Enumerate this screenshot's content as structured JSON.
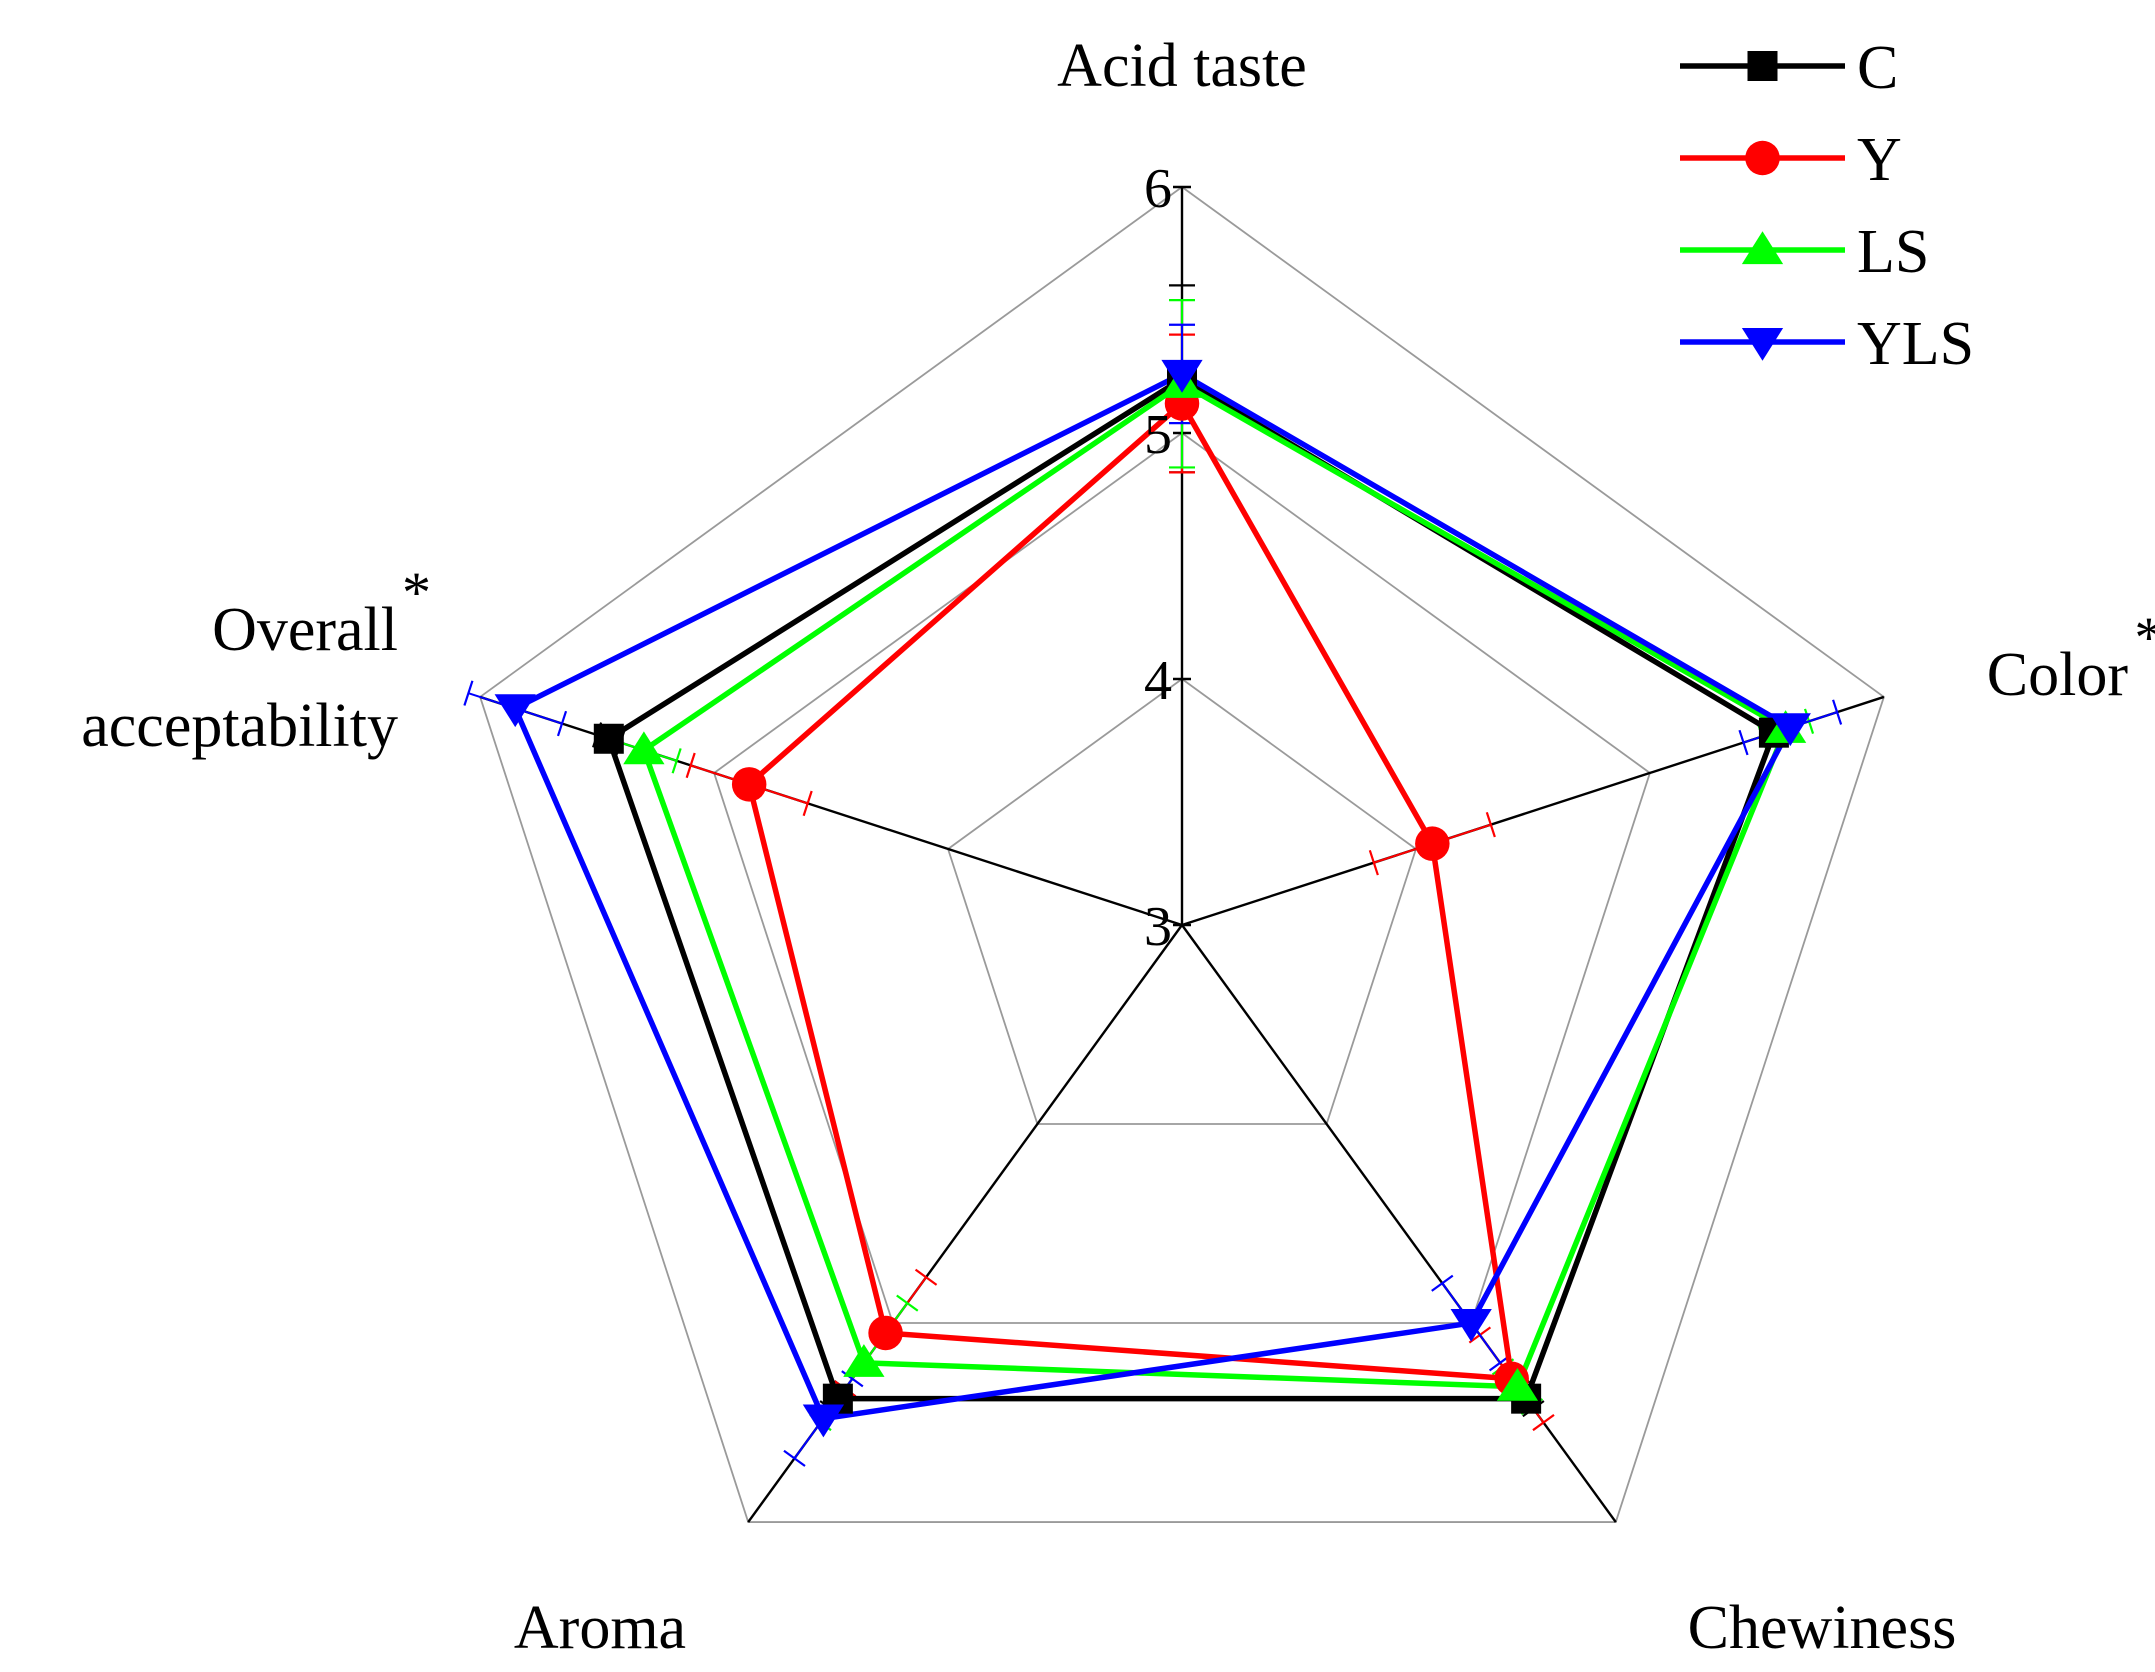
{
  "chart_data": {
    "type": "radar",
    "axes": [
      {
        "label": "Acid taste",
        "marker": ""
      },
      {
        "label": "Color",
        "marker": "*"
      },
      {
        "label": "Chewiness",
        "marker": ""
      },
      {
        "label": "Aroma",
        "marker": ""
      },
      {
        "label": "Overall acceptability",
        "label_lines": [
          "Overall",
          "acceptability"
        ],
        "marker": "*"
      }
    ],
    "rlim": [
      3,
      6
    ],
    "ticks": [
      {
        "value": 3,
        "label": "3"
      },
      {
        "value": 4,
        "label": "4"
      },
      {
        "value": 5,
        "label": "5"
      },
      {
        "value": 6,
        "label": "6"
      }
    ],
    "grid": true,
    "legend": {
      "position": "top-right"
    },
    "series": [
      {
        "name": "C",
        "color": "#000000",
        "marker": "square",
        "values": [
          5.22,
          5.53,
          5.38,
          5.38,
          5.45
        ],
        "errors": [
          0.38,
          0.05,
          0.05,
          0.05,
          0.05
        ]
      },
      {
        "name": "Y",
        "color": "#ff0000",
        "marker": "circle",
        "values": [
          5.12,
          4.07,
          5.28,
          5.05,
          4.85
        ],
        "errors": [
          0.28,
          0.25,
          0.22,
          0.28,
          0.25
        ]
      },
      {
        "name": "LS",
        "color": "#00ff00",
        "marker": "triangle-up",
        "values": [
          5.2,
          5.58,
          5.32,
          5.2,
          5.3
        ],
        "errors": [
          0.34,
          0.1,
          0.1,
          0.3,
          0.14
        ]
      },
      {
        "name": "YLS",
        "color": "#0000ff",
        "marker": "triangle-down",
        "values": [
          5.24,
          5.6,
          5.0,
          5.48,
          5.85
        ],
        "errors": [
          0.2,
          0.2,
          0.2,
          0.2,
          0.2
        ]
      }
    ]
  }
}
